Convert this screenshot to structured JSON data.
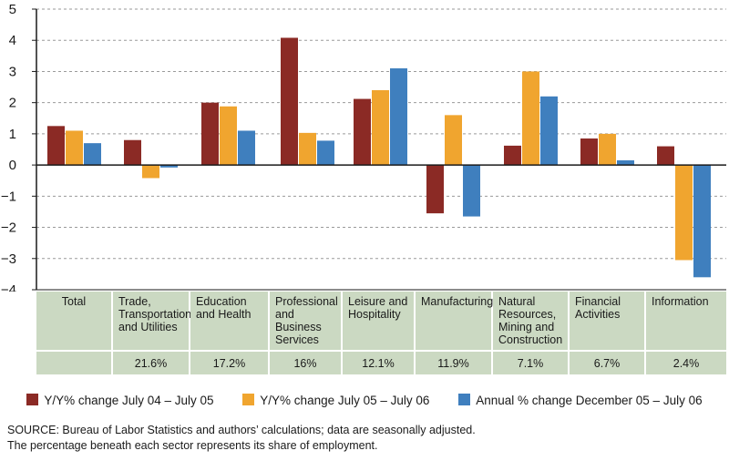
{
  "chart_data": {
    "type": "bar",
    "ylim": [
      -4,
      5
    ],
    "yticks": [
      "5",
      "4",
      "3",
      "2",
      "1",
      "0",
      "−1",
      "−2",
      "−3",
      "−4"
    ],
    "ytick_values": [
      5,
      4,
      3,
      2,
      1,
      0,
      -1,
      -2,
      -3,
      -4
    ],
    "grid": true,
    "categories": [
      "Total",
      "Trade, Transportation and Utilities",
      "Education and Health",
      "Professional and Business Services",
      "Leisure and Hospitality",
      "Manufacturing",
      "Natural Resources, Mining and Construction",
      "Financial Activities",
      "Information"
    ],
    "shares": [
      "",
      "21.6%",
      "17.2%",
      "16%",
      "12.1%",
      "11.9%",
      "7.1%",
      "6.7%",
      "2.4%"
    ],
    "series": [
      {
        "name": "Y/Y% change July 04 – July 05",
        "color": "#8b2a25",
        "values": [
          1.25,
          0.8,
          2.0,
          4.08,
          2.12,
          -1.55,
          0.62,
          0.85,
          0.6
        ]
      },
      {
        "name": "Y/Y% change July 05 – July 06",
        "color": "#f0a52f",
        "values": [
          1.1,
          -0.42,
          1.88,
          1.03,
          2.4,
          1.6,
          3.0,
          1.0,
          -3.05
        ]
      },
      {
        "name": "Annual % change December 05 – July 06",
        "color": "#3f7fbe",
        "values": [
          0.7,
          -0.08,
          1.1,
          0.78,
          3.1,
          -1.65,
          2.2,
          0.15,
          -3.6
        ]
      }
    ]
  },
  "table": {
    "cells": [
      {
        "label": "Total",
        "share": ""
      },
      {
        "label": "Trade,\nTransportation\nand Utilities",
        "share": "21.6%"
      },
      {
        "label": "Education\nand Health",
        "share": "17.2%"
      },
      {
        "label": "Professional\nand Business\nServices",
        "share": "16%"
      },
      {
        "label": "Leisure and\nHospitality",
        "share": "12.1%"
      },
      {
        "label": "Manufacturing",
        "share": "11.9%"
      },
      {
        "label": "Natural\nResources,\nMining and\nConstruction",
        "share": "7.1%"
      },
      {
        "label": "Financial\nActivities",
        "share": "6.7%"
      },
      {
        "label": "Information",
        "share": "2.4%"
      }
    ]
  },
  "legend": [
    {
      "label": "Y/Y% change July 04 – July 05",
      "color": "#8b2a25"
    },
    {
      "label": "Y/Y% change July 05 – July 06",
      "color": "#f0a52f"
    },
    {
      "label": "Annual % change December 05 – July 06",
      "color": "#3f7fbe"
    }
  ],
  "source": {
    "line1": "SOURCE: Bureau of Labor Statistics and authors’ calculations; data are seasonally adjusted.",
    "line2": "The percentage beneath each sector represents its share of employment."
  },
  "colors": {
    "table_bg": "#cbd9c2",
    "grid": "#9a9a9a",
    "axis": "#1a1a1a"
  }
}
